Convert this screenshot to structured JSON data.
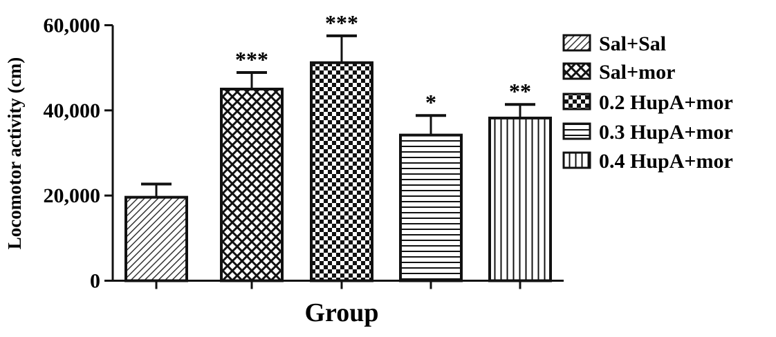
{
  "chart_data": {
    "type": "bar",
    "title": "",
    "xlabel": "Group",
    "ylabel": "Locomotor activity (cm)",
    "ylim": [
      0,
      60000
    ],
    "yticks": [
      0,
      20000,
      40000,
      60000
    ],
    "ytick_labels": [
      "0",
      "20,000",
      "40,000",
      "60,000"
    ],
    "grid": false,
    "legend_position": "right",
    "categories": [
      "Sal+Sal",
      "Sal+mor",
      "0.2 HupA+mor",
      "0.3 HupA+mor",
      "0.4 HupA+mor"
    ],
    "values": [
      19600,
      45000,
      51200,
      34200,
      38200
    ],
    "error_upper": [
      22700,
      48900,
      57500,
      38800,
      41400
    ],
    "significance": [
      "",
      "***",
      "***",
      "*",
      "**"
    ],
    "patterns": [
      "diagonal",
      "crosshatch",
      "checker",
      "horizontal",
      "vertical"
    ],
    "colors": {
      "stroke": "#111111",
      "background": "#ffffff"
    }
  }
}
